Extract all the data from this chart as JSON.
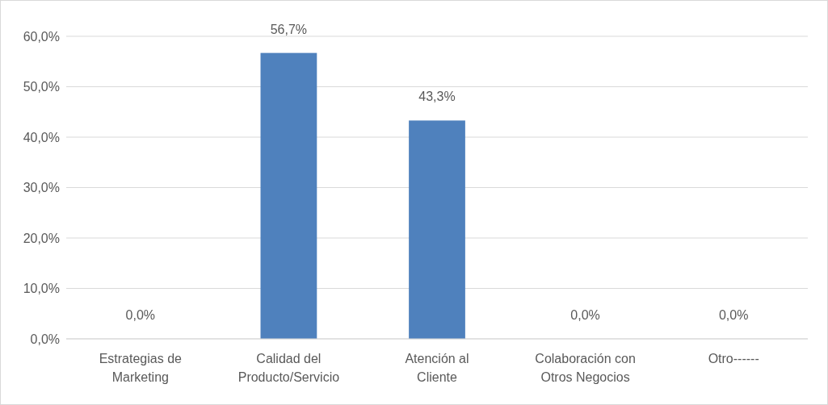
{
  "chart_data": {
    "type": "bar",
    "categories": [
      "Estrategias de Marketing",
      "Calidad del Producto/Servicio",
      "Atención al Cliente",
      "Colaboración con Otros Negocios",
      "Otro------"
    ],
    "values": [
      0,
      56.7,
      43.3,
      0,
      0
    ],
    "value_labels": [
      "0,0%",
      "56,7%",
      "43,3%",
      "0,0%",
      "0,0%"
    ],
    "color": "#4f81bd",
    "ylim": [
      0,
      60
    ],
    "yticks": [
      {
        "value": 0,
        "label": "0,0%"
      },
      {
        "value": 10,
        "label": "10,0%"
      },
      {
        "value": 20,
        "label": "20,0%"
      },
      {
        "value": 30,
        "label": "30,0%"
      },
      {
        "value": 40,
        "label": "40,0%"
      },
      {
        "value": 50,
        "label": "50,0%"
      },
      {
        "value": 60,
        "label": "60,0%"
      }
    ],
    "grid": "y"
  }
}
